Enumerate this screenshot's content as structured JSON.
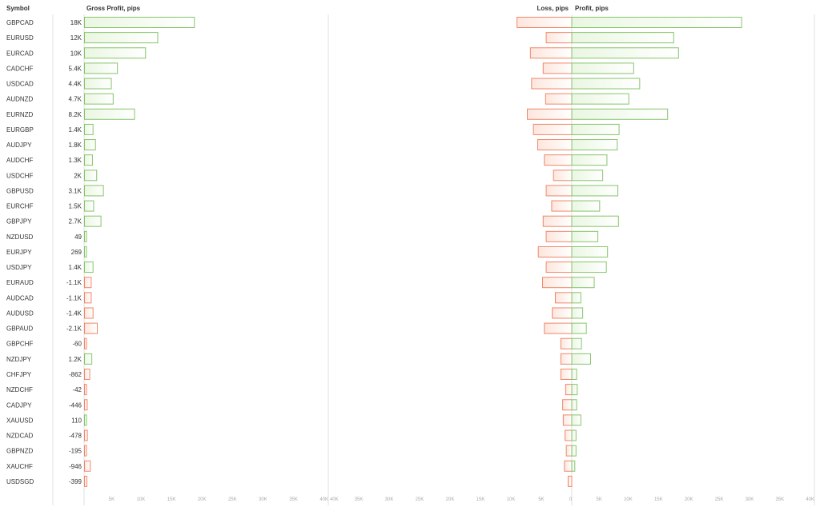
{
  "chart_data": {
    "type": "bar",
    "headers": {
      "symbol": "Symbol",
      "gross": "Gross Profit, pips",
      "loss": "Loss, pips",
      "profit": "Profit, pips"
    },
    "colors": {
      "profit_stroke": "#86c56b",
      "profit_fill": "#eaf6e2",
      "loss_stroke": "#f0876b",
      "loss_fill": "#fde6dd",
      "grid": "#e2e2e2",
      "tick": "#aaaaaa"
    },
    "categories": [
      "GBPCAD",
      "EURUSD",
      "EURCAD",
      "CADCHF",
      "USDCAD",
      "AUDNZD",
      "EURNZD",
      "EURGBP",
      "AUDJPY",
      "AUDCHF",
      "USDCHF",
      "GBPUSD",
      "EURCHF",
      "GBPJPY",
      "NZDUSD",
      "EURJPY",
      "USDJPY",
      "EURAUD",
      "AUDCAD",
      "AUDUSD",
      "GBPAUD",
      "GBPCHF",
      "NZDJPY",
      "CHFJPY",
      "NZDCHF",
      "CADJPY",
      "XAUUSD",
      "NZDCAD",
      "GBPNZD",
      "XAUCHF",
      "USDSGD"
    ],
    "gross_labels": [
      "18K",
      "12K",
      "10K",
      "5.4K",
      "4.4K",
      "4.7K",
      "8.2K",
      "1.4K",
      "1.8K",
      "1.3K",
      "2K",
      "3.1K",
      "1.5K",
      "2.7K",
      "49",
      "269",
      "1.4K",
      "-1.1K",
      "-1.1K",
      "-1.4K",
      "-2.1K",
      "-60",
      "1.2K",
      "-862",
      "-42",
      "-446",
      "110",
      "-478",
      "-195",
      "-946",
      "-399"
    ],
    "gross_values": [
      18000,
      12000,
      10000,
      5400,
      4400,
      4700,
      8200,
      1400,
      1800,
      1300,
      2000,
      3100,
      1500,
      2700,
      49,
      269,
      1400,
      -1100,
      -1100,
      -1400,
      -2100,
      -60,
      1200,
      -862,
      -42,
      -446,
      110,
      -478,
      -195,
      -946,
      -399
    ],
    "loss_values": [
      9000,
      4200,
      6800,
      4700,
      6600,
      4300,
      7300,
      6300,
      5600,
      4500,
      3000,
      4200,
      3300,
      4700,
      4200,
      5500,
      4200,
      4800,
      2700,
      3200,
      4500,
      1800,
      1800,
      1800,
      1000,
      1500,
      1400,
      1100,
      900,
      1200,
      600
    ],
    "profit_values": [
      28000,
      16800,
      17600,
      10200,
      11200,
      9400,
      15800,
      7800,
      7500,
      5800,
      5100,
      7600,
      4600,
      7700,
      4300,
      5900,
      5700,
      3700,
      1500,
      1800,
      2400,
      1600,
      3100,
      800,
      900,
      800,
      1500,
      700,
      700,
      500,
      0
    ],
    "gross_axis": {
      "min": 0,
      "max": 40000,
      "ticks": [
        0,
        5000,
        10000,
        15000,
        20000,
        25000,
        30000,
        35000,
        40000
      ],
      "tick_labels": [
        "0",
        "5K",
        "10K",
        "15K",
        "20K",
        "25K",
        "30K",
        "35K",
        "40K"
      ]
    },
    "loss_axis": {
      "min": 0,
      "max": 40000,
      "ticks": [
        40000,
        35000,
        30000,
        25000,
        20000,
        15000,
        10000,
        5000,
        0
      ],
      "tick_labels": [
        "40K",
        "35K",
        "30K",
        "25K",
        "20K",
        "15K",
        "10K",
        "5K",
        "0"
      ]
    },
    "profit_axis": {
      "min": 0,
      "max": 40000,
      "ticks": [
        5000,
        10000,
        15000,
        20000,
        25000,
        30000,
        35000,
        40000
      ],
      "tick_labels": [
        "5K",
        "10K",
        "15K",
        "20K",
        "25K",
        "30K",
        "35K",
        "40K"
      ]
    }
  }
}
